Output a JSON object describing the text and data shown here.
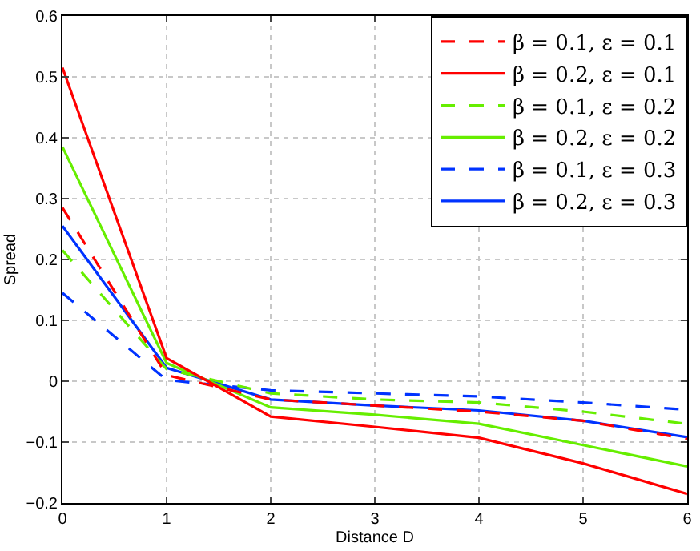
{
  "chart_data": {
    "type": "line",
    "xlabel": "Distance D",
    "ylabel": "Spread",
    "x": [
      0,
      1,
      2,
      3,
      4,
      5,
      6
    ],
    "xlim": [
      0,
      6
    ],
    "xticks": [
      0,
      1,
      2,
      3,
      4,
      5,
      6
    ],
    "ylim": [
      -0.2,
      0.6
    ],
    "yticks": [
      -0.2,
      -0.1,
      0,
      0.1,
      0.2,
      0.3,
      0.4,
      0.5,
      0.6
    ],
    "grid": true,
    "legend": "top right",
    "marker": "none",
    "series": [
      {
        "name": "β = 0.1, ε = 0.1",
        "color": "#ff0000",
        "line_style": "dashed",
        "values": [
          0.285,
          0.01,
          -0.03,
          -0.04,
          -0.05,
          -0.065,
          -0.095
        ]
      },
      {
        "name": "β = 0.2, ε = 0.1",
        "color": "#ff0000",
        "line_style": "solid",
        "values": [
          0.515,
          0.038,
          -0.058,
          -0.075,
          -0.093,
          -0.135,
          -0.185
        ]
      },
      {
        "name": "β = 0.1, ε = 0.2",
        "color": "#66ee00",
        "line_style": "dashed",
        "values": [
          0.215,
          0.02,
          -0.02,
          -0.03,
          -0.035,
          -0.05,
          -0.07
        ]
      },
      {
        "name": "β = 0.2, ε = 0.2",
        "color": "#66ee00",
        "line_style": "solid",
        "values": [
          0.385,
          0.03,
          -0.043,
          -0.055,
          -0.07,
          -0.105,
          -0.14
        ]
      },
      {
        "name": "β = 0.1, ε = 0.3",
        "color": "#0033ff",
        "line_style": "dashed",
        "values": [
          0.145,
          0.002,
          -0.015,
          -0.02,
          -0.025,
          -0.035,
          -0.047
        ]
      },
      {
        "name": "β = 0.2, ε = 0.3",
        "color": "#0033ff",
        "line_style": "solid",
        "values": [
          0.255,
          0.022,
          -0.03,
          -0.04,
          -0.048,
          -0.065,
          -0.092
        ]
      }
    ]
  }
}
